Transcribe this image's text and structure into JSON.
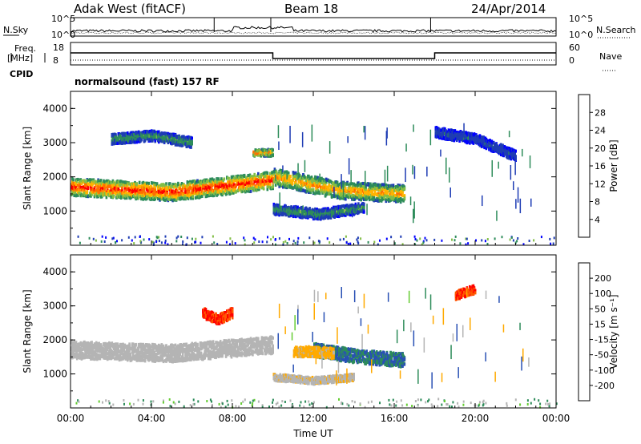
{
  "header": {
    "station": "Adak West (fitACF)",
    "beam": "Beam 18",
    "date": "24/Apr/2014"
  },
  "noise_panel": {
    "left_label": "N.Sky",
    "right_label": "N.Search",
    "ticks": [
      "10^5",
      "10^0"
    ]
  },
  "freq_panel": {
    "left_label_line1": "Freq.",
    "left_label_line2": "[MHz]",
    "left_ticks": [
      "18",
      "8"
    ],
    "right_label": "Nave",
    "right_ticks": [
      "60",
      "0"
    ],
    "cpid_label": "CPID"
  },
  "mode_text": "normalsound (fast) 157 RF",
  "colors": {
    "power_scale": [
      "#0000ff",
      "#1e3cb4",
      "#2d8c5a",
      "#82be46",
      "#ffb400",
      "#ff6e00",
      "#ff0000"
    ],
    "velocity_scale": [
      "#ff0000",
      "#ff5a00",
      "#ffaa00",
      "#b4b4b4",
      "#b4b4b4",
      "#64cc32",
      "#2d8c5a",
      "#2850b4",
      "#0000ff"
    ],
    "ground_scatter": "#b4b4b4"
  },
  "chart_data": [
    {
      "type": "heatmap",
      "panel": "power",
      "x_unit": "hours UT",
      "xlim": [
        0,
        24
      ],
      "ylim": [
        0,
        4500
      ],
      "ylabel": "Slant Range [km]",
      "yticks": [
        "1000",
        "2000",
        "3000",
        "4000"
      ],
      "xticks": [
        "00:00",
        "04:00",
        "08:00",
        "12:00",
        "16:00",
        "20:00",
        "00:00"
      ],
      "xlabel": "Time UT",
      "colorbar": {
        "label": "Power [dB]",
        "ticks": [
          "4",
          "8",
          "12",
          "16",
          "20",
          "24",
          "28"
        ],
        "range": [
          0,
          30
        ]
      },
      "features": [
        {
          "t": [
            0,
            10
          ],
          "center_km": [
            1700,
            1550,
            1900
          ],
          "width_km": 500,
          "peak_db": 28
        },
        {
          "t": [
            10,
            16.5
          ],
          "center_km": [
            2000,
            1600,
            1500
          ],
          "width_km": 500,
          "peak_db": 22
        },
        {
          "t": [
            10,
            14.5
          ],
          "center_km": [
            1050,
            900,
            1100
          ],
          "width_km": 300,
          "peak_db": 12
        },
        {
          "t": [
            2,
            6
          ],
          "center_km": [
            3100,
            3200,
            3000
          ],
          "width_km": 300,
          "peak_db": 12
        },
        {
          "t": [
            9,
            10
          ],
          "center_km": [
            2700,
            2700,
            2700
          ],
          "width_km": 200,
          "peak_db": 24
        },
        {
          "t": [
            18,
            22
          ],
          "center_km": [
            3300,
            3100,
            2600
          ],
          "width_km": 300,
          "peak_db": 8
        }
      ]
    },
    {
      "type": "heatmap",
      "panel": "velocity",
      "x_unit": "hours UT",
      "xlim": [
        0,
        24
      ],
      "ylim": [
        0,
        4500
      ],
      "ylabel": "Slant Range [km]",
      "yticks": [
        "1000",
        "2000",
        "3000",
        "4000"
      ],
      "xticks": [
        "00:00",
        "04:00",
        "08:00",
        "12:00",
        "16:00",
        "20:00",
        "00:00"
      ],
      "xlabel": "Time UT",
      "colorbar": {
        "label": "Velocity [m s⁻¹]",
        "ticks": [
          "200",
          "100",
          "50",
          "15",
          "-15",
          "-50",
          "-100",
          "-200"
        ],
        "range": [
          -250,
          250
        ]
      },
      "features": [
        {
          "t": [
            0,
            10
          ],
          "center_km": [
            1700,
            1600,
            1850
          ],
          "width_km": 500,
          "vel": 0,
          "ground": true
        },
        {
          "t": [
            12,
            16.5
          ],
          "center_km": [
            1700,
            1500,
            1400
          ],
          "width_km": 400,
          "vel": 50
        },
        {
          "t": [
            11,
            13
          ],
          "center_km": [
            1650,
            1650,
            1600
          ],
          "width_km": 300,
          "vel": -60
        },
        {
          "t": [
            10,
            14
          ],
          "center_km": [
            900,
            800,
            900
          ],
          "width_km": 200,
          "vel": -40
        },
        {
          "t": [
            6.5,
            8
          ],
          "center_km": [
            2800,
            2600,
            2800
          ],
          "width_km": 300,
          "vel": -200
        },
        {
          "t": [
            19,
            20
          ],
          "center_km": [
            3300,
            3400,
            3500
          ],
          "width_km": 250,
          "vel": -200
        }
      ]
    }
  ]
}
